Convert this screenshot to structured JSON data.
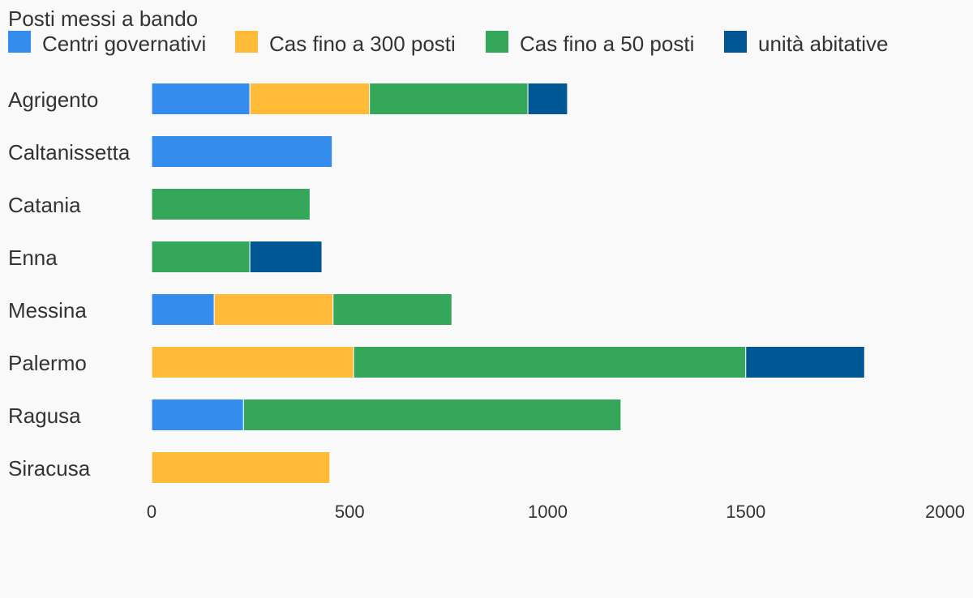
{
  "chart_data": {
    "type": "bar",
    "orientation": "horizontal",
    "stacked": true,
    "title": "Posti messi a bando",
    "categories": [
      "Agrigento",
      "Caltanissetta",
      "Catania",
      "Enna",
      "Messina",
      "Palermo",
      "Ragusa",
      "Siracusa"
    ],
    "series": [
      {
        "name": "Centri governativi",
        "color": "#348ced",
        "values": [
          248,
          456,
          0,
          0,
          158,
          0,
          232,
          0
        ]
      },
      {
        "name": "Cas fino a 300 posti",
        "color": "#ffbb38",
        "values": [
          302,
          0,
          0,
          0,
          300,
          510,
          0,
          450
        ]
      },
      {
        "name": "Cas fino a 50 posti",
        "color": "#34a75a",
        "values": [
          400,
          0,
          400,
          248,
          300,
          990,
          953,
          0
        ]
      },
      {
        "name": "unità abitative",
        "color": "#005794",
        "values": [
          100,
          0,
          0,
          182,
          0,
          300,
          0,
          0
        ]
      }
    ],
    "xlim": [
      0,
      2000
    ],
    "xticks": [
      0,
      500,
      1000,
      1500,
      2000
    ],
    "grid": false,
    "legend_position": "top-left"
  }
}
